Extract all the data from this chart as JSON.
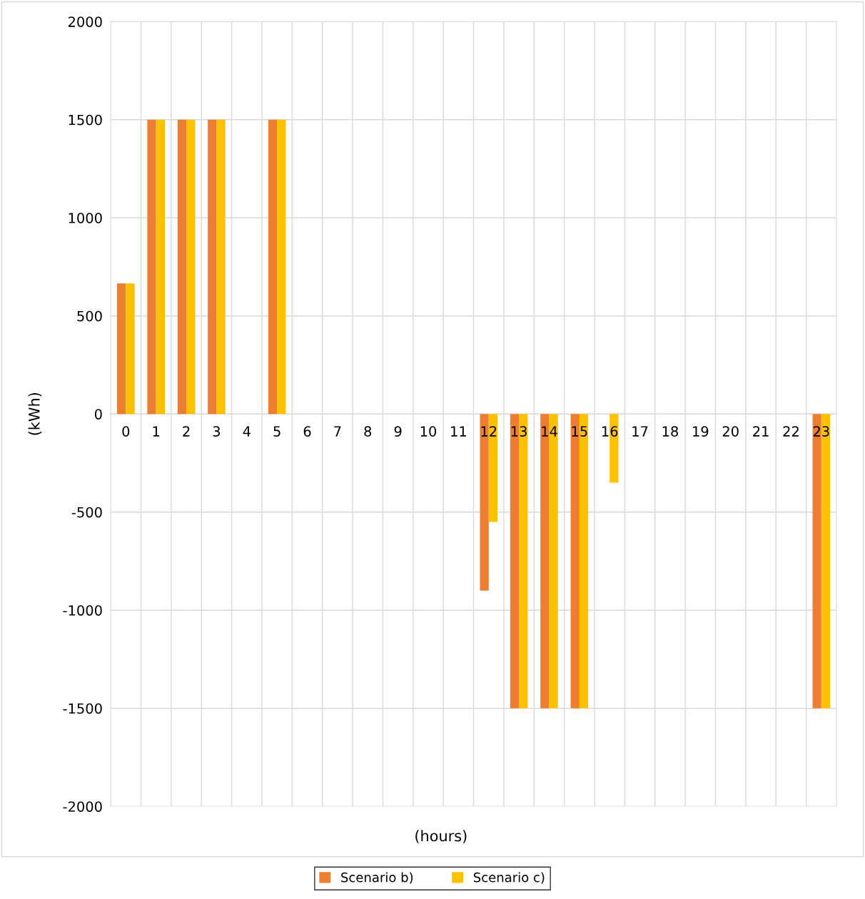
{
  "chart_data": {
    "type": "bar",
    "xlabel": "(hours)",
    "ylabel": "(kWh)",
    "categories": [
      "0",
      "1",
      "2",
      "3",
      "4",
      "5",
      "6",
      "7",
      "8",
      "9",
      "10",
      "11",
      "12",
      "13",
      "14",
      "15",
      "16",
      "17",
      "18",
      "19",
      "20",
      "21",
      "22",
      "23"
    ],
    "series": [
      {
        "name": "Scenario b)",
        "color": "#ed7d31",
        "values": [
          665,
          1500,
          1500,
          1500,
          0,
          1500,
          0,
          0,
          0,
          0,
          0,
          0,
          -900,
          -1500,
          -1500,
          -1500,
          0,
          0,
          0,
          0,
          0,
          0,
          0,
          -1500
        ]
      },
      {
        "name": "Scenario c)",
        "color": "#ffc000",
        "values": [
          665,
          1500,
          1500,
          1500,
          0,
          1500,
          0,
          0,
          0,
          0,
          0,
          0,
          -550,
          -1500,
          -1500,
          -1500,
          -350,
          0,
          0,
          0,
          0,
          0,
          0,
          -1500
        ]
      }
    ],
    "ylim": [
      -2000,
      2000
    ],
    "yticks": [
      -2000,
      -1500,
      -1000,
      -500,
      0,
      500,
      1000,
      1500,
      2000
    ],
    "grid": true,
    "legend": "bottom"
  }
}
